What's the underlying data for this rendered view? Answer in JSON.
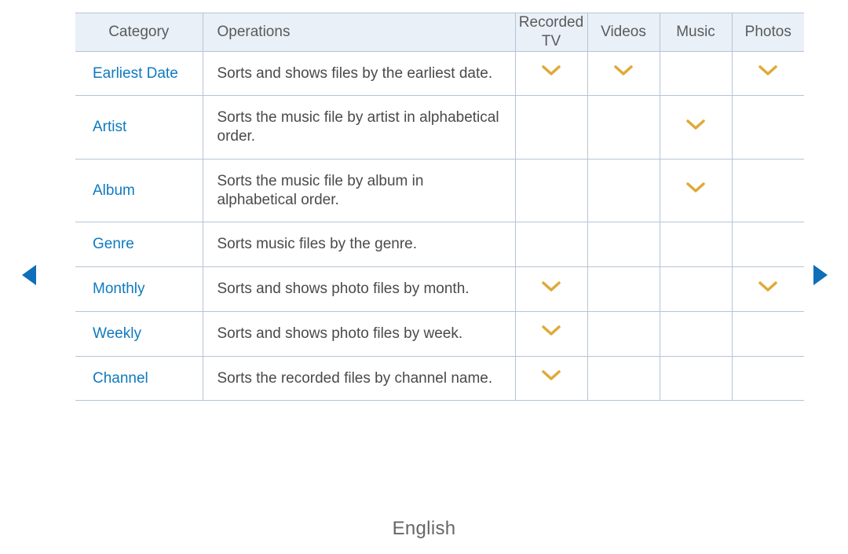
{
  "colors": {
    "header_bg": "#eaf0f8",
    "border": "#b6c4d6",
    "category_text": "#0f7ac0",
    "operation_text": "#4a4a4a",
    "header_text": "#5a5a5a",
    "checkmark": "#e0a938",
    "nav_arrow": "#0f6fb8",
    "footer_text": "#666666"
  },
  "table": {
    "columns": {
      "category": "Category",
      "operations": "Operations",
      "recorded_tv": "Recorded TV",
      "videos": "Videos",
      "music": "Music",
      "photos": "Photos"
    },
    "rows": [
      {
        "category": "Earliest Date",
        "operation": "Sorts and shows files by the earliest date.",
        "recorded_tv": true,
        "videos": true,
        "music": false,
        "photos": true
      },
      {
        "category": "Artist",
        "operation": "Sorts the music file by artist in alphabetical order.",
        "recorded_tv": false,
        "videos": false,
        "music": true,
        "photos": false
      },
      {
        "category": "Album",
        "operation": "Sorts the music file by album in alphabetical order.",
        "recorded_tv": false,
        "videos": false,
        "music": true,
        "photos": false
      },
      {
        "category": "Genre",
        "operation": "Sorts music files by the genre.",
        "recorded_tv": false,
        "videos": false,
        "music": false,
        "photos": false
      },
      {
        "category": "Monthly",
        "operation": "Sorts and shows photo files by month.",
        "recorded_tv": true,
        "videos": false,
        "music": false,
        "photos": true
      },
      {
        "category": "Weekly",
        "operation": "Sorts and shows photo files by week.",
        "recorded_tv": true,
        "videos": false,
        "music": false,
        "photos": false
      },
      {
        "category": "Channel",
        "operation": "Sorts the recorded files by channel name.",
        "recorded_tv": true,
        "videos": false,
        "music": false,
        "photos": false
      }
    ]
  },
  "footer": {
    "language_label": "English"
  }
}
